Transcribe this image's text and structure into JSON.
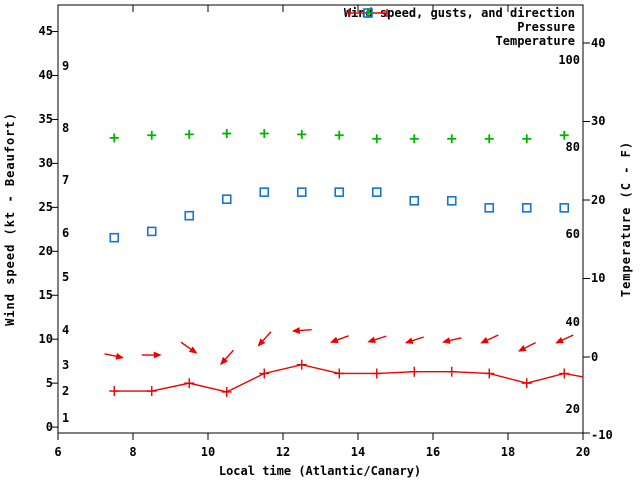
{
  "colors": {
    "wind": "#ee0000",
    "pressure": "#00b400",
    "temperature": "#1673d2",
    "axis": "#000000",
    "background": "#ffffff"
  },
  "legend": {
    "wind_label": "Wind speed, gusts, and direction",
    "pressure_label": "Pressure",
    "temperature_label": "Temperature"
  },
  "axes": {
    "x": {
      "label": "Local time (Atlantic/Canary)",
      "ticks": [
        6,
        8,
        10,
        12,
        14,
        16,
        18,
        20
      ],
      "min": 6,
      "max": 20
    },
    "wind": {
      "label": "Wind speed (kt - Beaufort)",
      "unit": "kt",
      "ticks": [
        0,
        5,
        10,
        15,
        20,
        25,
        30,
        35,
        40,
        45
      ],
      "beaufort_labels": [
        1,
        2,
        3,
        4,
        5,
        6,
        7,
        8,
        9
      ],
      "beaufort_boundary_kt": [
        1,
        4,
        7,
        11,
        17,
        22,
        28,
        34,
        41
      ]
    },
    "temperature": {
      "label": "Temperature (C - F)",
      "ticks_c": [
        -10,
        0,
        10,
        20,
        30,
        40
      ],
      "labels_f": [
        20,
        40,
        60,
        80,
        100
      ]
    }
  },
  "chart_data": {
    "type": "line",
    "title": "",
    "xlabel": "Local time (Atlantic/Canary)",
    "ylabel_left": "Wind speed (kt - Beaufort)",
    "ylabel_right": "Temperature (C - F)",
    "xlim": [
      6,
      20
    ],
    "wind_ylim_kt": [
      -0.7,
      48
    ],
    "temp_ylim_c": [
      -9.7,
      44.8
    ],
    "grid": false,
    "legend_position": "top-right",
    "x_hours": [
      7.5,
      8.5,
      9.5,
      10.5,
      11.5,
      12.5,
      13.5,
      14.5,
      15.5,
      16.5,
      17.5,
      18.5,
      19.5
    ],
    "series": [
      {
        "name": "Wind speed, gusts, and direction",
        "type": "line",
        "marker": "plus-tick",
        "axis": "wind_kt",
        "values_kt": [
          4.1,
          4.1,
          5.0,
          4.0,
          6.1,
          7.1,
          6.1,
          6.1,
          6.3,
          6.3,
          6.1,
          5.0,
          6.1
        ],
        "tail_point": {
          "x_hour": 20,
          "value_kt": 5.7
        }
      },
      {
        "name": "Gusts and direction (arrows)",
        "type": "direction-arrows",
        "axis": "wind_kt",
        "gust_kt": [
          8.1,
          8.2,
          9.0,
          7.9,
          10.0,
          11.0,
          10.0,
          10.0,
          9.9,
          9.9,
          10.0,
          9.1,
          10.0
        ],
        "arrow_screen_deg": [
          102,
          90,
          125,
          222,
          222,
          266,
          250,
          252,
          252,
          257,
          245,
          243,
          245
        ]
      },
      {
        "name": "Pressure",
        "type": "scatter",
        "marker": "plus",
        "axis": "unlabeled (read against left axis)",
        "values_left_axis_units": [
          32.9,
          33.2,
          33.3,
          33.4,
          33.4,
          33.3,
          33.2,
          32.8,
          32.8,
          32.8,
          32.8,
          32.8,
          33.2
        ]
      },
      {
        "name": "Temperature",
        "type": "scatter",
        "marker": "open-square",
        "axis": "temp_c",
        "values_c": [
          15.2,
          16.0,
          18.0,
          20.1,
          21.0,
          21.0,
          21.0,
          21.0,
          19.9,
          19.9,
          19.0,
          19.0,
          19.0
        ]
      }
    ]
  }
}
